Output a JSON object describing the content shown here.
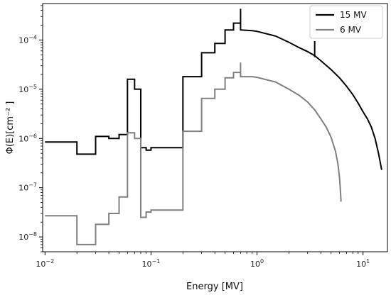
{
  "chart_data": {
    "type": "line",
    "title": "",
    "xlabel": "Energy [MV]",
    "ylabel": "Φ(E)[cm⁻² ]",
    "xscale": "log",
    "yscale": "log",
    "xlim": [
      0.0095,
      17
    ],
    "ylim": [
      5e-09,
      0.00055
    ],
    "x_ticks": [
      {
        "value": 0.01,
        "base": "10",
        "exp": "−2"
      },
      {
        "value": 0.1,
        "base": "10",
        "exp": "−1"
      },
      {
        "value": 1,
        "base": "10",
        "exp": "0"
      },
      {
        "value": 10,
        "base": "10",
        "exp": "1"
      }
    ],
    "y_ticks": [
      {
        "value": 1e-08,
        "base": "10",
        "exp": "−8"
      },
      {
        "value": 1e-07,
        "base": "10",
        "exp": "−7"
      },
      {
        "value": 1e-06,
        "base": "10",
        "exp": "−6"
      },
      {
        "value": 1e-05,
        "base": "10",
        "exp": "−5"
      },
      {
        "value": 0.0001,
        "base": "10",
        "exp": "−4"
      }
    ],
    "grid": false,
    "legend_position": "top-right",
    "series": [
      {
        "name": "15 MV",
        "color": "#000000",
        "step_edges": [
          0.01,
          0.02,
          0.03,
          0.04,
          0.05,
          0.06,
          0.07,
          0.08,
          0.09,
          0.1,
          0.2,
          0.3,
          0.4,
          0.5,
          0.6,
          0.7
        ],
        "step_values": [
          8.5e-07,
          4.8e-07,
          1.1e-06,
          1e-06,
          1.2e-06,
          1.6e-05,
          1e-05,
          6.5e-07,
          5.8e-07,
          6.5e-07,
          1.8e-05,
          5.5e-05,
          8.5e-05,
          0.00016,
          0.00022,
          0.00043
        ],
        "curve_x": [
          0.7,
          0.9,
          1.0,
          1.5,
          2.0,
          2.5,
          3.0,
          3.5,
          4.0,
          5.0,
          6.0,
          7.0,
          8.0,
          9.0,
          10.0,
          11.0,
          12.0,
          13.0,
          14.0,
          15.0
        ],
        "curve_y": [
          0.00016,
          0.000155,
          0.00015,
          0.00012,
          9e-05,
          7e-05,
          5.8e-05,
          4.8e-05,
          3.8e-05,
          2.5e-05,
          1.7e-05,
          1.15e-05,
          7.8e-06,
          5.2e-06,
          3.5e-06,
          2.5e-06,
          1.7e-06,
          1e-06,
          5e-07,
          2.3e-07
        ],
        "spike": {
          "x": 3.5,
          "y_low": 4.5e-05,
          "y_high": 9.5e-05
        }
      },
      {
        "name": "6 MV",
        "color": "#808080",
        "step_edges": [
          0.01,
          0.02,
          0.03,
          0.04,
          0.05,
          0.06,
          0.07,
          0.08,
          0.09,
          0.1,
          0.2,
          0.3,
          0.4,
          0.5,
          0.6,
          0.7
        ],
        "step_values": [
          2.7e-08,
          7e-09,
          1.8e-08,
          3e-08,
          6.5e-08,
          1.3e-06,
          1e-06,
          2.5e-08,
          3.2e-08,
          3.5e-08,
          1.4e-06,
          6.5e-06,
          1e-05,
          1.7e-05,
          2.2e-05,
          3.5e-05
        ],
        "curve_x": [
          0.7,
          0.9,
          1.0,
          1.5,
          2.0,
          2.5,
          3.0,
          3.5,
          4.0,
          4.5,
          5.0,
          5.5,
          5.8,
          6.0,
          6.1,
          6.2
        ],
        "curve_y": [
          1.8e-05,
          1.8e-05,
          1.75e-05,
          1.4e-05,
          1e-05,
          7.5e-06,
          5.5e-06,
          3.8e-06,
          2.5e-06,
          1.7e-06,
          1.05e-06,
          5.5e-07,
          3e-07,
          1.6e-07,
          1e-07,
          5.2e-08
        ]
      }
    ]
  }
}
